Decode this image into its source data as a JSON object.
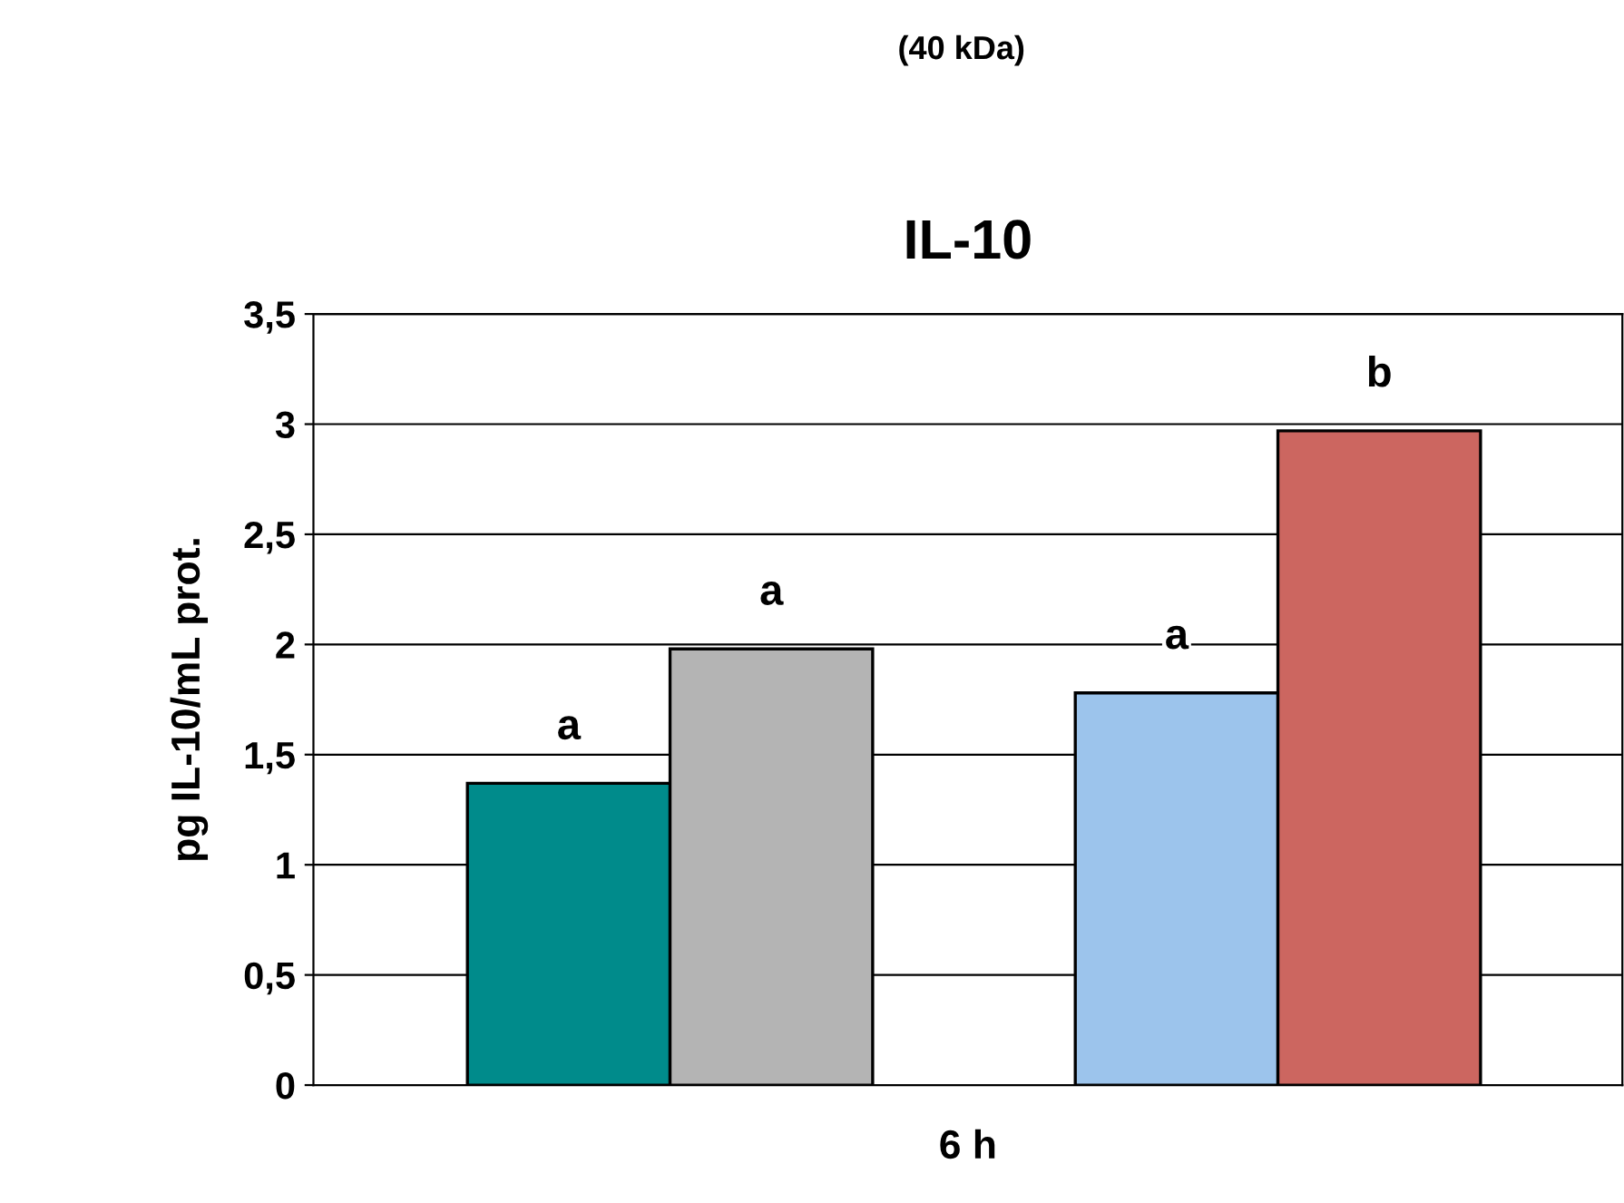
{
  "chart_data": {
    "type": "bar",
    "title": "IL-10",
    "subtitle": "(40 kDa)",
    "xlabel": "6 h",
    "ylabel": "pg IL-10/mL prot.",
    "categories": [
      null,
      null,
      null,
      null,
      null
    ],
    "series": [
      {
        "values": [
          1.37,
          1.98,
          null,
          1.78,
          2.97
        ],
        "colors": [
          "#008b8b",
          "#b4b4b4",
          null,
          "#9cc4ec",
          "#cc6660"
        ],
        "value_labels": [
          "a",
          "a",
          null,
          "a",
          "b"
        ]
      }
    ],
    "ylim": [
      0,
      3.5
    ],
    "yticks": [
      0,
      {
        "value": 0.5,
        "label": "0,5"
      },
      1,
      {
        "value": 1.5,
        "label": "1,5"
      },
      2,
      {
        "value": 2.5,
        "label": "2,5"
      },
      3,
      {
        "value": 3.5,
        "label": "3,5"
      }
    ],
    "grid": "y",
    "legend": false
  }
}
